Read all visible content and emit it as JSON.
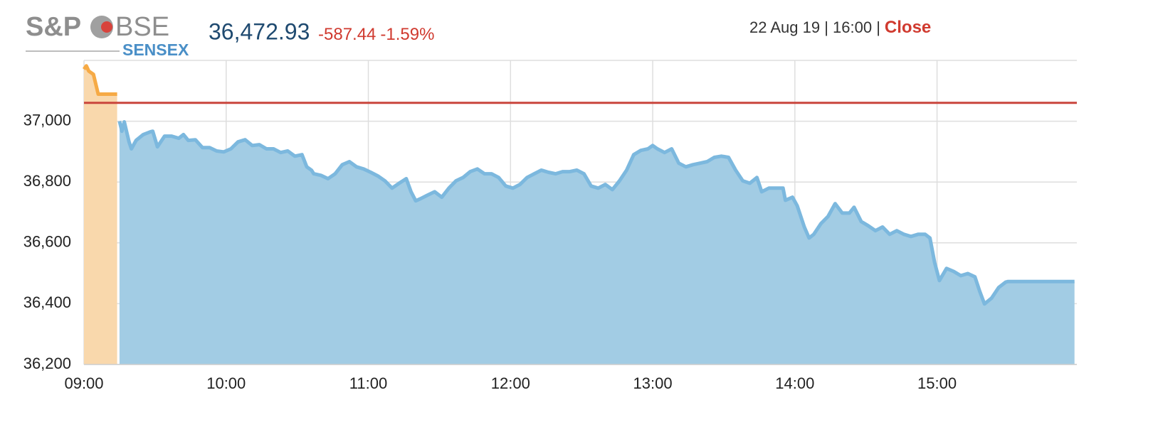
{
  "header": {
    "logo_left": "S&P",
    "logo_right": "BSE",
    "logo_sub": "SENSEX",
    "price": "36,472.93",
    "change": "-587.44",
    "change_pct": "-1.59%",
    "timestamp": "22 Aug 19 | 16:00 |",
    "status": "Close"
  },
  "chart_data": {
    "type": "area",
    "xlim": [
      "09:00",
      "15:59"
    ],
    "xticks": [
      "09:00",
      "10:00",
      "11:00",
      "12:00",
      "13:00",
      "14:00",
      "15:00"
    ],
    "ylim": [
      36200,
      37200
    ],
    "yticks": [
      {
        "value": 36200,
        "label": "36,200"
      },
      {
        "value": 36400,
        "label": "36,400"
      },
      {
        "value": 36600,
        "label": "36,600"
      },
      {
        "value": 36800,
        "label": "36,800"
      },
      {
        "value": 37000,
        "label": "37,000"
      }
    ],
    "grid": true,
    "prev_close": 37060.37,
    "prev_close_color": "#c9453c",
    "series": [
      {
        "color": "#f6aa45",
        "fill": "#f9d8ac",
        "x": [
          "09:00",
          "09:01",
          "09:02",
          "09:04",
          "09:06",
          "09:14"
        ],
        "values": [
          37171,
          37182,
          37165,
          37154,
          37089,
          37089
        ]
      },
      {
        "color": "#7cb8de",
        "fill": "#a2cce4",
        "x": [
          "09:15",
          "09:16",
          "09:17",
          "09:19",
          "09:20",
          "09:22",
          "09:25",
          "09:28",
          "09:29",
          "09:31",
          "09:34",
          "09:37",
          "09:40",
          "09:42",
          "09:44",
          "09:47",
          "09:50",
          "09:53",
          "09:56",
          "09:59",
          "10:02",
          "10:05",
          "10:08",
          "10:11",
          "10:14",
          "10:17",
          "10:20",
          "10:23",
          "10:26",
          "10:29",
          "10:32",
          "10:34",
          "10:36",
          "10:37",
          "10:40",
          "10:43",
          "10:46",
          "10:49",
          "10:52",
          "10:55",
          "10:58",
          "11:01",
          "11:04",
          "11:07",
          "11:10",
          "11:13",
          "11:16",
          "11:18",
          "11:20",
          "11:22",
          "11:25",
          "11:28",
          "11:31",
          "11:34",
          "11:37",
          "11:40",
          "11:43",
          "11:46",
          "11:49",
          "11:52",
          "11:55",
          "11:58",
          "12:01",
          "12:04",
          "12:07",
          "12:10",
          "12:13",
          "12:16",
          "12:19",
          "12:22",
          "12:25",
          "12:28",
          "12:31",
          "12:34",
          "12:37",
          "12:40",
          "12:43",
          "12:46",
          "12:49",
          "12:52",
          "12:55",
          "12:58",
          "13:00",
          "13:02",
          "13:05",
          "13:08",
          "13:11",
          "13:14",
          "13:17",
          "13:20",
          "13:23",
          "13:26",
          "13:29",
          "13:32",
          "13:35",
          "13:38",
          "13:41",
          "13:44",
          "13:46",
          "13:49",
          "13:52",
          "13:55",
          "13:56",
          "13:59",
          "14:01",
          "14:04",
          "14:06",
          "14:08",
          "14:11",
          "14:14",
          "14:17",
          "14:20",
          "14:23",
          "14:25",
          "14:28",
          "14:31",
          "14:34",
          "14:37",
          "14:40",
          "14:43",
          "14:46",
          "14:49",
          "14:52",
          "14:55",
          "14:57",
          "14:59",
          "15:01",
          "15:04",
          "15:07",
          "15:10",
          "15:13",
          "15:16",
          "15:18",
          "15:20",
          "15:23",
          "15:26",
          "15:29",
          "15:30",
          "15:58"
        ],
        "values": [
          37000,
          36967,
          36998,
          36932,
          36909,
          36937,
          36956,
          36965,
          36967,
          36916,
          36951,
          36951,
          36944,
          36956,
          36937,
          36939,
          36913,
          36913,
          36902,
          36899,
          36909,
          36932,
          36939,
          36920,
          36923,
          36909,
          36909,
          36897,
          36902,
          36885,
          36890,
          36850,
          36839,
          36827,
          36822,
          36811,
          36827,
          36857,
          36867,
          36850,
          36843,
          36832,
          36820,
          36804,
          36780,
          36796,
          36811,
          36768,
          36738,
          36745,
          36757,
          36768,
          36750,
          36780,
          36804,
          36815,
          36834,
          36843,
          36827,
          36827,
          36815,
          36787,
          36780,
          36792,
          36815,
          36827,
          36839,
          36832,
          36827,
          36834,
          36834,
          36839,
          36827,
          36787,
          36780,
          36792,
          36775,
          36804,
          36839,
          36890,
          36904,
          36909,
          36920,
          36909,
          36897,
          36909,
          36862,
          36850,
          36857,
          36862,
          36867,
          36881,
          36885,
          36881,
          36839,
          36804,
          36796,
          36815,
          36768,
          36780,
          36780,
          36780,
          36740,
          36750,
          36722,
          36652,
          36616,
          36628,
          36663,
          36687,
          36729,
          36698,
          36698,
          36717,
          36670,
          36656,
          36640,
          36652,
          36628,
          36640,
          36628,
          36621,
          36628,
          36628,
          36616,
          36535,
          36476,
          36516,
          36506,
          36492,
          36499,
          36488,
          36441,
          36399,
          36418,
          36453,
          36471,
          36472.93,
          36472.93
        ]
      }
    ]
  }
}
